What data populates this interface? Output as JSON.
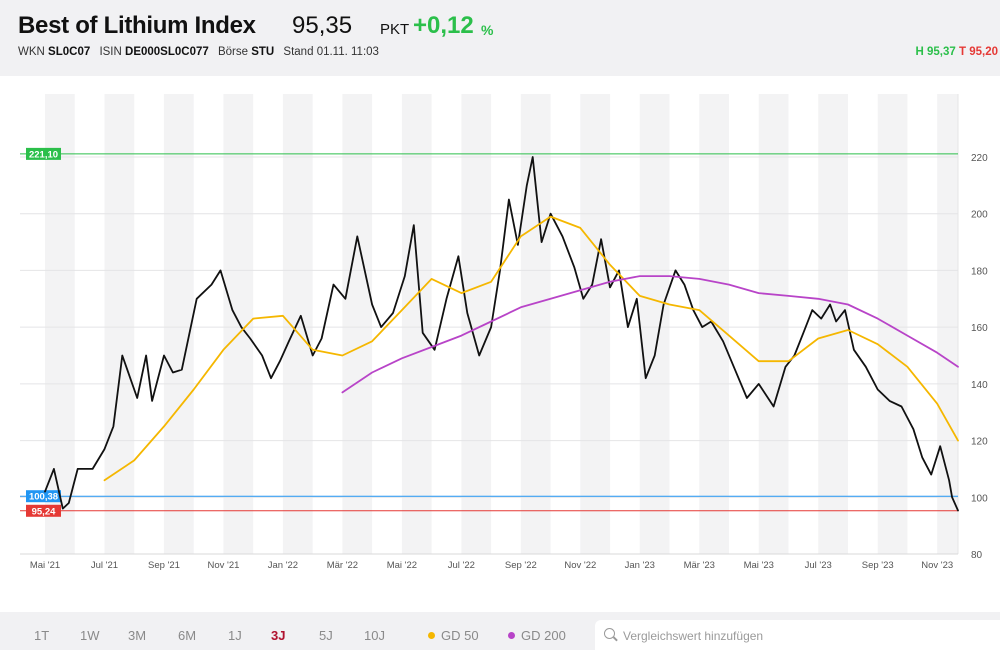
{
  "header": {
    "title": "Best of Lithium Index",
    "price": "95,35",
    "unit": "PKT",
    "change": "+0,12",
    "change_unit": "%",
    "wkn_label": "WKN",
    "wkn": "SL0C07",
    "isin_label": "ISIN",
    "isin": "DE000SL0C077",
    "exchange_label": "Börse",
    "exchange": "STU",
    "stand_label": "Stand",
    "stand": "01.11. 11:03",
    "high_label": "H",
    "high": "95,37",
    "low_label": "T",
    "low": "95,20"
  },
  "footer": {
    "ranges": [
      "1T",
      "1W",
      "3M",
      "6M",
      "1J",
      "3J",
      "5J",
      "10J"
    ],
    "active_range": "3J",
    "legend": [
      {
        "label": "GD 50",
        "color": "#f5b700"
      },
      {
        "label": "GD 200",
        "color": "#b844c8"
      }
    ],
    "search_placeholder": "Vergleichswert hinzufügen"
  },
  "colors": {
    "price_line": "#111111",
    "gd50": "#f5b700",
    "gd200": "#b844c8",
    "high_marker": "#2bbf4a",
    "start_marker": "#2196f3",
    "low_marker": "#e53935",
    "band": "#f3f3f4"
  },
  "chart_data": {
    "type": "line",
    "title": "Best of Lithium Index",
    "ylim": [
      80,
      230
    ],
    "yticks": [
      80,
      100,
      120,
      140,
      160,
      180,
      200,
      220
    ],
    "ytick_labels": [
      "80",
      "100",
      "120",
      "140",
      "160",
      "180",
      "200",
      "220"
    ],
    "x_labels": [
      "Mai '21",
      "Jul '21",
      "Sep '21",
      "Nov '21",
      "Jan '22",
      "Mär '22",
      "Mai '22",
      "Jul '22",
      "Sep '22",
      "Nov '22",
      "Jan '23",
      "Mär '23",
      "Mai '23",
      "Jul '23",
      "Sep '23",
      "Nov '23"
    ],
    "x_label_months": [
      0,
      2,
      4,
      6,
      8,
      10,
      12,
      14,
      16,
      18,
      20,
      22,
      24,
      26,
      28,
      30
    ],
    "x_unit": "months since May 2021",
    "markers": [
      {
        "label": "221,10",
        "value": 221.1,
        "color": "#2bbf4a"
      },
      {
        "label": "100,38",
        "value": 100.38,
        "color": "#2196f3"
      },
      {
        "label": "95,24",
        "value": 95.24,
        "color": "#e53935"
      }
    ],
    "series": [
      {
        "name": "Best of Lithium Index",
        "color": "#111111",
        "x": [
          0,
          0.3,
          0.6,
          0.8,
          1.1,
          1.6,
          2.0,
          2.3,
          2.6,
          3.1,
          3.4,
          3.6,
          4.0,
          4.3,
          4.6,
          5.1,
          5.6,
          5.9,
          6.3,
          6.6,
          6.9,
          7.3,
          7.6,
          7.9,
          8.2,
          8.6,
          9.0,
          9.3,
          9.7,
          10.1,
          10.5,
          11.0,
          11.3,
          11.7,
          12.1,
          12.4,
          12.7,
          13.1,
          13.5,
          13.9,
          14.2,
          14.6,
          15.0,
          15.3,
          15.6,
          15.9,
          16.2,
          16.4,
          16.7,
          17.0,
          17.4,
          17.8,
          18.1,
          18.4,
          18.7,
          19.0,
          19.3,
          19.6,
          19.9,
          20.2,
          20.5,
          20.8,
          21.2,
          21.5,
          21.8,
          22.1,
          22.4,
          22.8,
          23.2,
          23.6,
          24.0,
          24.5,
          24.9,
          25.2,
          25.5,
          25.8,
          26.1,
          26.4,
          26.6,
          26.9,
          27.2,
          27.6,
          28.0,
          28.4,
          28.8,
          29.2,
          29.5,
          29.8,
          30.1,
          30.4,
          30.5,
          30.7
        ],
        "y": [
          102,
          110,
          96,
          98,
          110,
          110,
          117,
          125,
          150,
          135,
          150,
          134,
          150,
          144,
          145,
          170,
          175,
          180,
          166,
          160,
          156,
          150,
          142,
          148,
          155,
          164,
          150,
          156,
          175,
          170,
          192,
          168,
          160,
          165,
          178,
          196,
          158,
          152,
          170,
          185,
          165,
          150,
          160,
          180,
          205,
          189,
          210,
          220,
          190,
          200,
          192,
          181,
          170,
          175,
          191,
          174,
          180,
          160,
          170,
          142,
          150,
          168,
          180,
          175,
          166,
          160,
          162,
          155,
          145,
          135,
          140,
          132,
          146,
          150,
          158,
          166,
          163,
          168,
          162,
          166,
          152,
          146,
          138,
          134,
          132,
          124,
          114,
          108,
          118,
          106,
          100,
          95.35
        ]
      },
      {
        "name": "GD 50",
        "color": "#f5b700",
        "x": [
          2.0,
          3.0,
          4.0,
          5.0,
          6.0,
          7.0,
          8.0,
          9.0,
          10.0,
          11.0,
          12.0,
          13.0,
          14.0,
          15.0,
          16.0,
          17.0,
          18.0,
          19.0,
          20.0,
          21.0,
          22.0,
          23.0,
          24.0,
          25.0,
          26.0,
          27.0,
          28.0,
          29.0,
          30.0,
          30.7
        ],
        "y": [
          106,
          113,
          125,
          138,
          152,
          163,
          164,
          152,
          150,
          155,
          166,
          177,
          172,
          176,
          192,
          199,
          195,
          182,
          171,
          168,
          166,
          157,
          148,
          148,
          156,
          159,
          154,
          146,
          133,
          120
        ]
      },
      {
        "name": "GD 200",
        "color": "#b844c8",
        "x": [
          10.0,
          11.0,
          12.0,
          13.0,
          14.0,
          15.0,
          16.0,
          17.0,
          18.0,
          19.0,
          20.0,
          21.0,
          22.0,
          23.0,
          24.0,
          25.0,
          26.0,
          27.0,
          28.0,
          29.0,
          30.0,
          30.7
        ],
        "y": [
          137,
          144,
          149,
          153,
          157,
          162,
          167,
          170,
          173,
          176,
          178,
          178,
          177,
          175,
          172,
          171,
          170,
          168,
          163,
          157,
          151,
          146
        ]
      }
    ],
    "grid": true
  }
}
